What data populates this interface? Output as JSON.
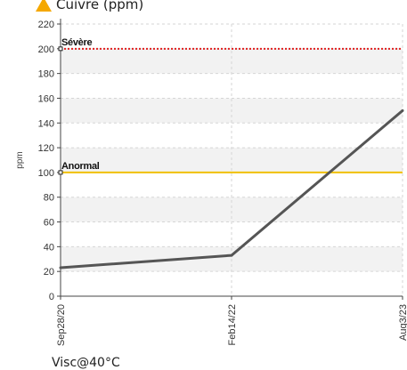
{
  "chart_data": {
    "type": "line",
    "title": "Cuivre (ppm)",
    "ylabel": "ppm",
    "xlabel": "",
    "ylim": [
      0,
      220
    ],
    "yticks": [
      0,
      20,
      40,
      60,
      80,
      100,
      120,
      140,
      160,
      180,
      200,
      220
    ],
    "categories": [
      "Sep28/20",
      "Feb14/22",
      "Aug3/23"
    ],
    "series": [
      {
        "values": [
          23,
          33,
          150
        ]
      }
    ],
    "thresholds": [
      {
        "label": "Sévère",
        "value": 200,
        "color": "#e02020"
      },
      {
        "label": "Anormal",
        "value": 100,
        "color": "#f0c000"
      }
    ],
    "grid": true,
    "footnote": "Visc@40°C",
    "colors": {
      "line": "#555555",
      "title_icon": "#f5a800"
    }
  }
}
